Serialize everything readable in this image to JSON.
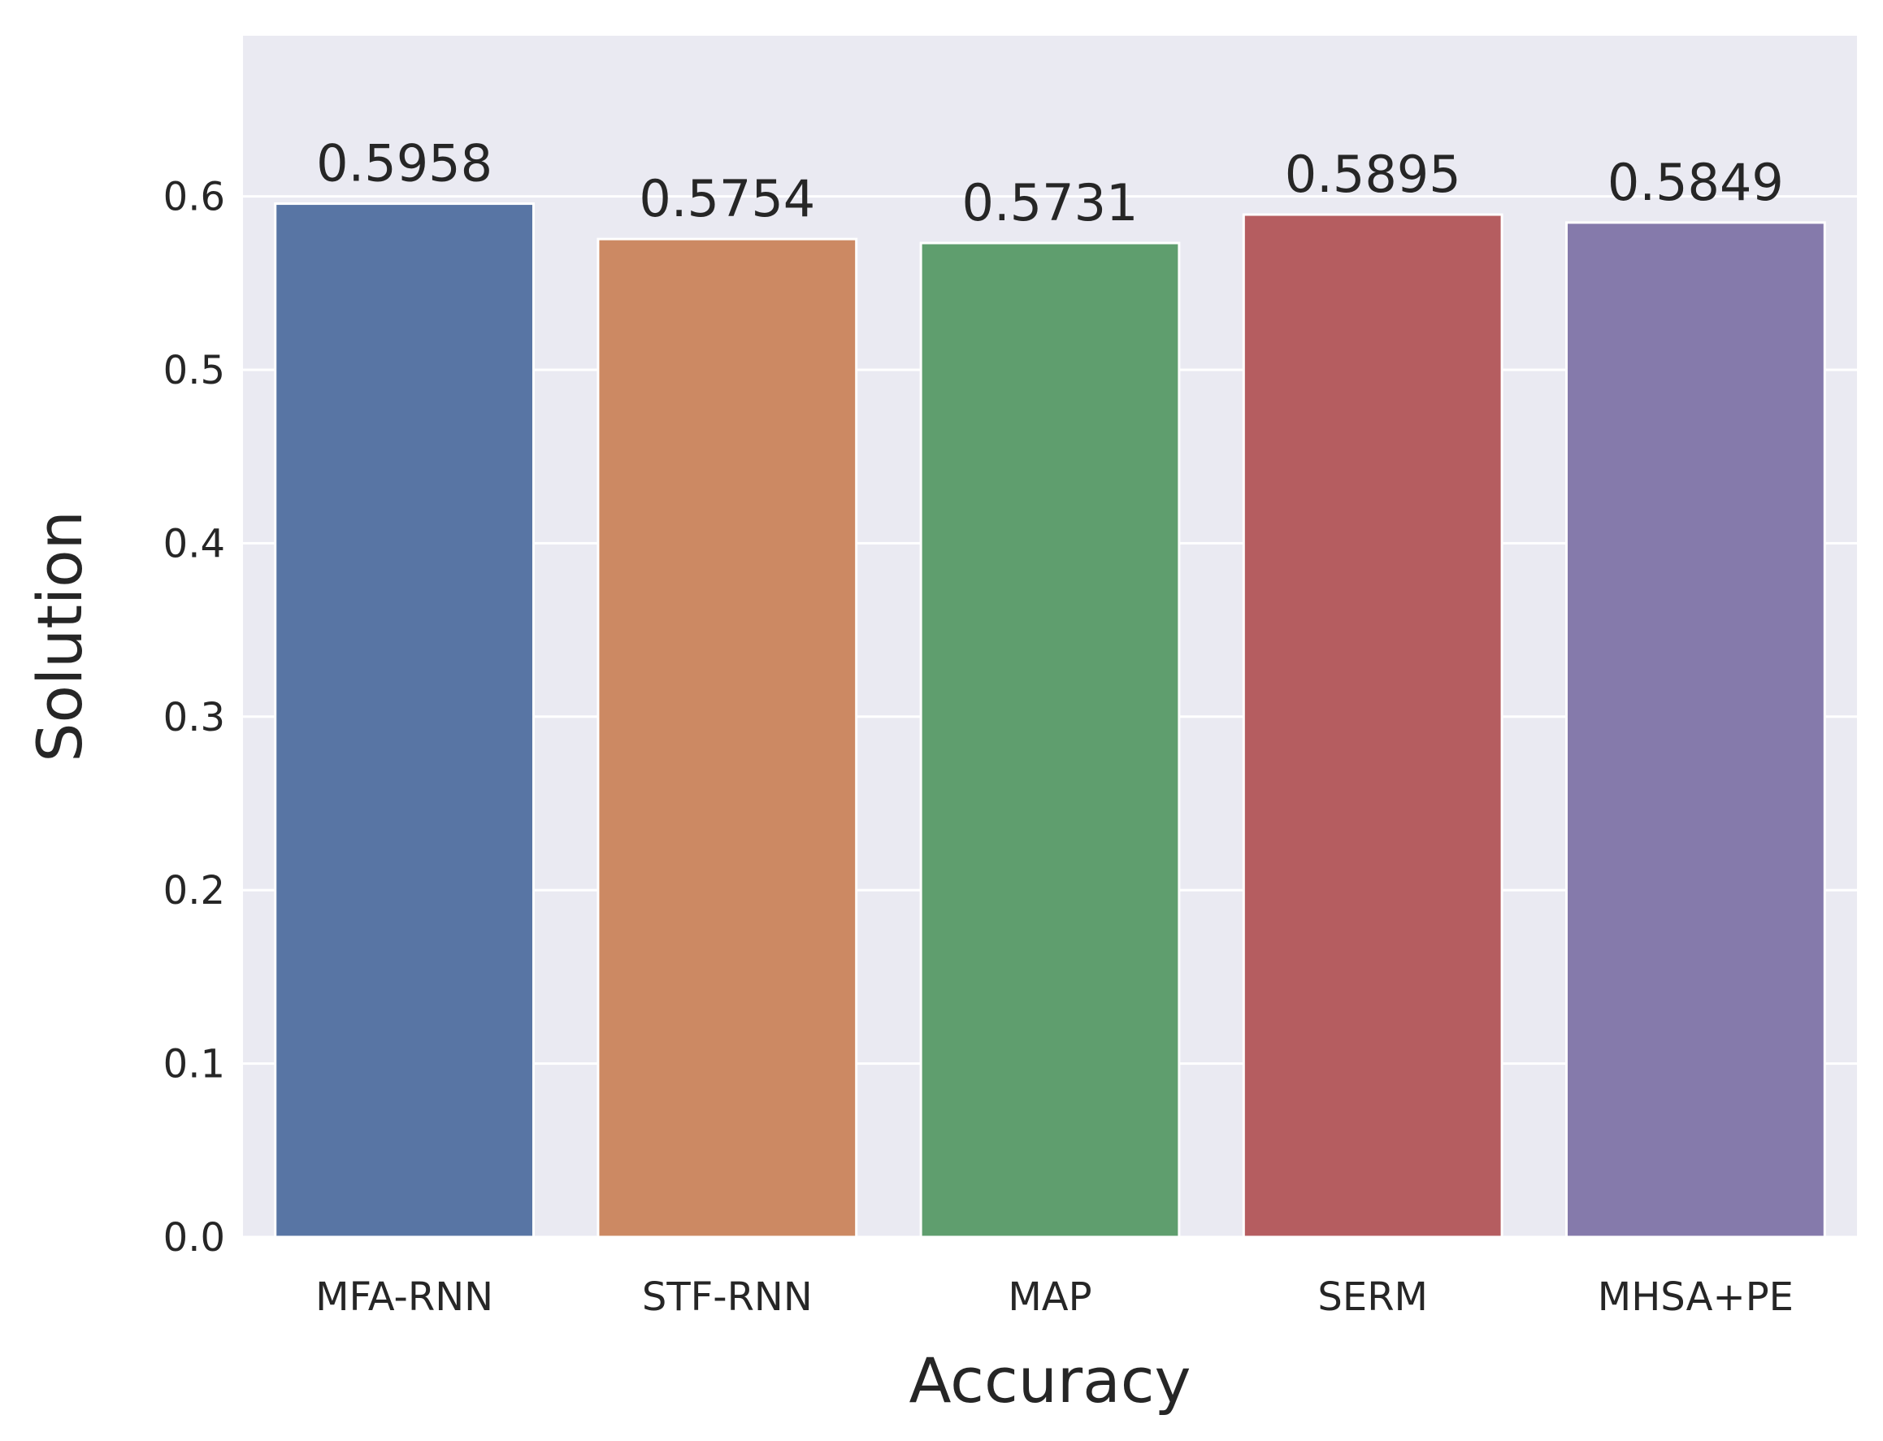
{
  "chart_data": {
    "type": "bar",
    "title": "",
    "xlabel": "Accuracy",
    "ylabel": "Solution",
    "categories": [
      "MFA-RNN",
      "STF-RNN",
      "MAP",
      "SERM",
      "MHSA+PE"
    ],
    "values": [
      0.5958,
      0.5754,
      0.5731,
      0.5895,
      0.5849
    ],
    "value_labels": [
      "0.5958",
      "0.5754",
      "0.5731",
      "0.5895",
      "0.5849"
    ],
    "ylim": [
      0,
      0.6926
    ],
    "yticks": [
      0.0,
      0.1,
      0.2,
      0.3,
      0.4,
      0.5,
      0.6
    ],
    "ytick_labels": [
      "0.0",
      "0.1",
      "0.2",
      "0.3",
      "0.4",
      "0.5",
      "0.6"
    ],
    "grid": true,
    "legend": "none",
    "colors": [
      "#5875a4",
      "#cc8963",
      "#5f9e6e",
      "#b55d60",
      "#857aab"
    ],
    "background_color": "#eaeaf2",
    "grid_color": "#ffffff"
  }
}
